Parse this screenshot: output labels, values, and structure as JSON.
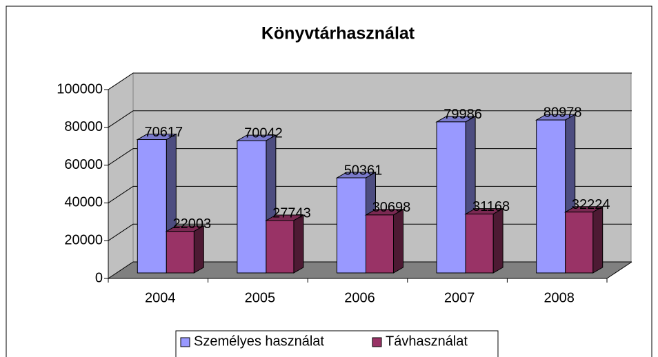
{
  "chart_data": {
    "type": "bar3d",
    "title": "Könyvtárhasználat",
    "categories": [
      "2004",
      "2005",
      "2006",
      "2007",
      "2008"
    ],
    "series": [
      {
        "name": "Személyes használat",
        "color": "#9999ff",
        "values": [
          70617,
          70042,
          50361,
          79986,
          80978
        ]
      },
      {
        "name": "Távhasználat",
        "color": "#993366",
        "values": [
          22003,
          27743,
          30698,
          31168,
          32224
        ]
      }
    ],
    "ylim": [
      0,
      100000
    ],
    "yticks": [
      0,
      20000,
      40000,
      60000,
      80000,
      100000
    ],
    "grid": true,
    "legend": "bottom"
  }
}
